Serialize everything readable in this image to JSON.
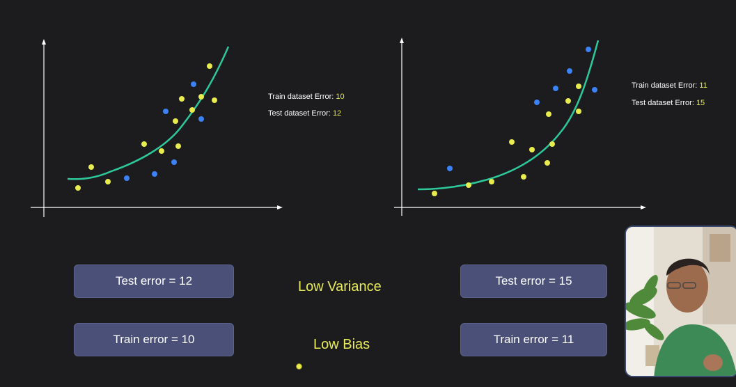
{
  "left_panel": {
    "train_label": "Train dataset Error: ",
    "train_value": "10",
    "test_label": "Test dataset Error: ",
    "test_value": "12"
  },
  "right_panel": {
    "train_label": "Train dataset Error: ",
    "train_value": "11",
    "test_label": "Test dataset Error: ",
    "test_value": "15"
  },
  "boxes": {
    "left_test": "Test error = 12",
    "left_train": "Train error = 10",
    "right_test": "Test error = 15",
    "right_train": "Train error = 11"
  },
  "labels": {
    "variance": "Low Variance",
    "bias": "Low Bias"
  },
  "colors": {
    "background": "#1c1c1e",
    "train_point": "#e8ec4c",
    "test_point": "#3b82f6",
    "fit_curve": "#2ec99a",
    "box_fill": "#4b5078"
  },
  "webcam": {
    "icon": "presenter-video-icon"
  }
}
